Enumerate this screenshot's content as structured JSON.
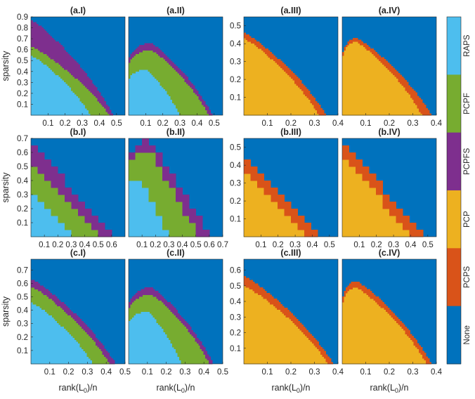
{
  "colors": {
    "None": "#0072bd",
    "PCPS": "#d95319",
    "PCP": "#edb120",
    "PCPFS": "#7e2f8e",
    "PCPF": "#77ac30",
    "RAPS": "#4dbeee"
  },
  "legend": {
    "labels": [
      "RAPS",
      "PCPF",
      "PCPFS",
      "PCP",
      "PCPS",
      "None"
    ],
    "placement": "right colorbar"
  },
  "ylabel": "sparsity",
  "xlabel_main": "rank(L",
  "xlabel_sub": "0",
  "xlabel_end": ")/n",
  "chart_data": [
    {
      "type": "heatmap",
      "title": "(a.I)",
      "kind": "rapsA",
      "xlim": [
        0,
        0.55
      ],
      "ylim": [
        0,
        0.9
      ],
      "xticks": [
        0.1,
        0.2,
        0.3,
        0.4,
        0.5
      ],
      "yticks": [
        0.1,
        0.2,
        0.3,
        0.4,
        0.5,
        0.6,
        0.7,
        0.8,
        0.9
      ],
      "categories": [
        "None",
        "PCPFS",
        "PCPF",
        "RAPS"
      ],
      "boundaries": [
        {
          "name": "PCPFS",
          "peak_x": 0.0,
          "peak_y": 0.87,
          "end_x": 0.48
        },
        {
          "name": "PCPF",
          "peak_x": 0.0,
          "peak_y": 0.63,
          "end_x": 0.46
        },
        {
          "name": "RAPS",
          "peak_x": 0.0,
          "peak_y": 0.55,
          "end_x": 0.35
        }
      ]
    },
    {
      "type": "heatmap",
      "title": "(a.II)",
      "kind": "rapsA",
      "xlim": [
        0,
        0.55
      ],
      "ylim": [
        0,
        0.9
      ],
      "xticks": [
        0.1,
        0.2,
        0.3,
        0.4,
        0.5
      ],
      "yticks": [],
      "categories": [
        "None",
        "PCPFS",
        "PCPF",
        "RAPS"
      ],
      "boundaries": [
        {
          "name": "PCPFS",
          "peak_x": 0.13,
          "peak_y": 0.66,
          "end_x": 0.49
        },
        {
          "name": "PCPF",
          "peak_x": 0.13,
          "peak_y": 0.6,
          "end_x": 0.47
        },
        {
          "name": "RAPS",
          "peak_x": 0.1,
          "peak_y": 0.42,
          "end_x": 0.3
        }
      ]
    },
    {
      "type": "heatmap",
      "title": "(a.III)",
      "kind": "pcpA",
      "xlim": [
        0,
        0.4
      ],
      "ylim": [
        0,
        0.55
      ],
      "xticks": [
        0.1,
        0.2,
        0.3,
        0.4
      ],
      "yticks": [
        0.1,
        0.2,
        0.3,
        0.4,
        0.5
      ],
      "categories": [
        "None",
        "PCPS",
        "PCP"
      ],
      "boundaries": [
        {
          "name": "PCPS",
          "peak_x": 0.0,
          "peak_y": 0.46,
          "end_x": 0.35
        },
        {
          "name": "PCP",
          "peak_x": 0.0,
          "peak_y": 0.43,
          "end_x": 0.32
        }
      ]
    },
    {
      "type": "heatmap",
      "title": "(a.IV)",
      "kind": "pcpA",
      "xlim": [
        0,
        0.4
      ],
      "ylim": [
        0,
        0.55
      ],
      "xticks": [
        0.1,
        0.2,
        0.3,
        0.4
      ],
      "yticks": [],
      "categories": [
        "None",
        "PCPS",
        "PCP"
      ],
      "boundaries": [
        {
          "name": "PCPS",
          "peak_x": 0.06,
          "peak_y": 0.43,
          "end_x": 0.38
        },
        {
          "name": "PCP",
          "peak_x": 0.06,
          "peak_y": 0.41,
          "end_x": 0.34
        }
      ]
    },
    {
      "type": "heatmap",
      "title": "(b.I)",
      "kind": "rapsB",
      "xlim": [
        0,
        0.7
      ],
      "ylim": [
        0,
        0.7
      ],
      "xticks": [
        0.1,
        0.2,
        0.3,
        0.4,
        0.5,
        0.6
      ],
      "yticks": [
        0.1,
        0.2,
        0.3,
        0.4,
        0.5,
        0.6,
        0.7
      ],
      "categories": [
        "None",
        "PCPFS",
        "PCPF",
        "RAPS"
      ],
      "boundaries": [
        {
          "name": "PCPFS",
          "peak_x": 0.0,
          "peak_y": 0.68,
          "end_x": 0.61
        },
        {
          "name": "PCPF",
          "peak_x": 0.0,
          "peak_y": 0.55,
          "end_x": 0.5
        },
        {
          "name": "RAPS",
          "peak_x": 0.0,
          "peak_y": 0.35,
          "end_x": 0.32
        }
      ]
    },
    {
      "type": "heatmap",
      "title": "(b.II)",
      "kind": "rapsB",
      "xlim": [
        0,
        0.7
      ],
      "ylim": [
        0,
        0.7
      ],
      "xticks": [
        0.1,
        0.2,
        0.3,
        0.4,
        0.5,
        0.6,
        0.7
      ],
      "yticks": [],
      "categories": [
        "None",
        "PCPFS",
        "PCPF",
        "RAPS"
      ],
      "boundaries": [
        {
          "name": "PCPFS",
          "peak_x": 0.15,
          "peak_y": 0.69,
          "end_x": 0.61
        },
        {
          "name": "PCPF",
          "peak_x": 0.15,
          "peak_y": 0.62,
          "end_x": 0.52
        },
        {
          "name": "RAPS",
          "peak_x": 0.1,
          "peak_y": 0.42,
          "end_x": 0.3
        }
      ]
    },
    {
      "type": "heatmap",
      "title": "(b.III)",
      "kind": "pcpB",
      "xlim": [
        0,
        0.55
      ],
      "ylim": [
        0,
        0.55
      ],
      "xticks": [
        0.1,
        0.2,
        0.3,
        0.4,
        0.5
      ],
      "yticks": [
        0.1,
        0.2,
        0.3,
        0.4,
        0.5
      ],
      "categories": [
        "None",
        "PCPS",
        "PCP"
      ],
      "boundaries": [
        {
          "name": "PCPS",
          "peak_x": 0.0,
          "peak_y": 0.46,
          "end_x": 0.47
        },
        {
          "name": "PCP",
          "peak_x": 0.0,
          "peak_y": 0.38,
          "end_x": 0.38
        }
      ]
    },
    {
      "type": "heatmap",
      "title": "(b.IV)",
      "kind": "pcpB",
      "xlim": [
        0,
        0.55
      ],
      "ylim": [
        0,
        0.55
      ],
      "xticks": [
        0.1,
        0.2,
        0.3,
        0.4,
        0.5
      ],
      "yticks": [],
      "categories": [
        "None",
        "PCPS",
        "PCP"
      ],
      "boundaries": [
        {
          "name": "PCPS",
          "peak_x": 0.0,
          "peak_y": 0.52,
          "end_x": 0.5
        },
        {
          "name": "PCP",
          "peak_x": 0.0,
          "peak_y": 0.47,
          "end_x": 0.4
        }
      ]
    },
    {
      "type": "heatmap",
      "title": "(c.I)",
      "kind": "rapsA",
      "xlim": [
        0,
        0.5
      ],
      "ylim": [
        0,
        0.78
      ],
      "xticks": [
        0.1,
        0.2,
        0.3,
        0.4,
        0.5
      ],
      "yticks": [
        0.1,
        0.2,
        0.3,
        0.4,
        0.5,
        0.6,
        0.7
      ],
      "categories": [
        "None",
        "PCPFS",
        "PCPF",
        "RAPS"
      ],
      "boundaries": [
        {
          "name": "PCPFS",
          "peak_x": 0.0,
          "peak_y": 0.63,
          "end_x": 0.45
        },
        {
          "name": "PCPF",
          "peak_x": 0.0,
          "peak_y": 0.58,
          "end_x": 0.42
        },
        {
          "name": "RAPS",
          "peak_x": 0.0,
          "peak_y": 0.46,
          "end_x": 0.33
        }
      ]
    },
    {
      "type": "heatmap",
      "title": "(c.II)",
      "kind": "rapsA",
      "xlim": [
        0,
        0.5
      ],
      "ylim": [
        0,
        0.78
      ],
      "xticks": [
        0.1,
        0.2,
        0.3,
        0.4,
        0.5
      ],
      "yticks": [],
      "categories": [
        "None",
        "PCPFS",
        "PCPF",
        "RAPS"
      ],
      "boundaries": [
        {
          "name": "PCPFS",
          "peak_x": 0.12,
          "peak_y": 0.57,
          "end_x": 0.45
        },
        {
          "name": "PCPF",
          "peak_x": 0.12,
          "peak_y": 0.52,
          "end_x": 0.43
        },
        {
          "name": "RAPS",
          "peak_x": 0.1,
          "peak_y": 0.39,
          "end_x": 0.28
        }
      ]
    },
    {
      "type": "heatmap",
      "title": "(c.III)",
      "kind": "pcpA",
      "xlim": [
        0,
        0.4
      ],
      "ylim": [
        0,
        0.67
      ],
      "xticks": [
        0.1,
        0.2,
        0.3,
        0.4
      ],
      "yticks": [
        0.1,
        0.2,
        0.3,
        0.4,
        0.5,
        0.6
      ],
      "categories": [
        "None",
        "PCPS",
        "PCP"
      ],
      "boundaries": [
        {
          "name": "PCPS",
          "peak_x": 0.0,
          "peak_y": 0.56,
          "end_x": 0.38
        },
        {
          "name": "PCP",
          "peak_x": 0.0,
          "peak_y": 0.5,
          "end_x": 0.36
        }
      ]
    },
    {
      "type": "heatmap",
      "title": "(c.IV)",
      "kind": "pcpA",
      "xlim": [
        0,
        0.4
      ],
      "ylim": [
        0,
        0.67
      ],
      "xticks": [
        0.1,
        0.2,
        0.3,
        0.4
      ],
      "yticks": [],
      "categories": [
        "None",
        "PCPS",
        "PCP"
      ],
      "boundaries": [
        {
          "name": "PCPS",
          "peak_x": 0.06,
          "peak_y": 0.53,
          "end_x": 0.38
        },
        {
          "name": "PCP",
          "peak_x": 0.06,
          "peak_y": 0.49,
          "end_x": 0.36
        }
      ]
    }
  ]
}
